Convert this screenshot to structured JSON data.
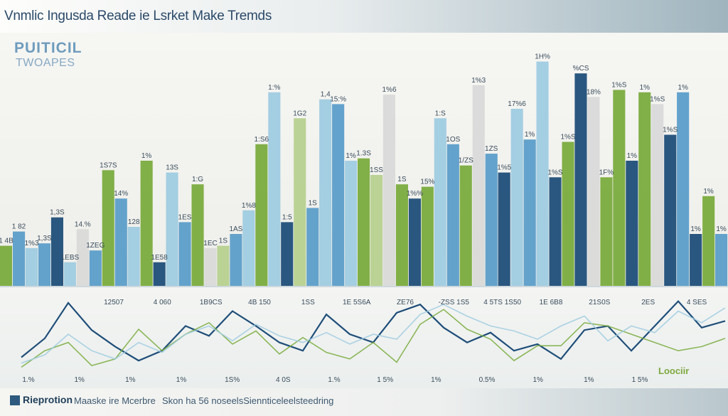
{
  "page": {
    "title": "Vnmlic Ingusda Reade ie Lsrket Make Tremds",
    "subtitle_line1": "PUITICIL",
    "subtitle_line2": "TWOAPES",
    "footer_left": "Rieprotion",
    "footer_mid": "Maaske ire Mcerbre",
    "footer_right": "Skon ha 56 noseelsSiennticeleelsteedring",
    "legend_badge": "Loociir"
  },
  "colors": {
    "navy": "#1f4e79",
    "blue": "#5b9dc9",
    "lightblue": "#9fcbe0",
    "green": "#7aab3e",
    "lightgreen": "#b6d08f",
    "gray": "#d9d9d9"
  },
  "chart_data": [
    {
      "type": "bar",
      "ylim": [
        0,
        100
      ],
      "grid": false,
      "bars": [
        {
          "value": 17,
          "color": "green"
        },
        {
          "value": 23,
          "color": "blue"
        },
        {
          "value": 16,
          "color": "lightblue"
        },
        {
          "value": 18,
          "color": "blue"
        },
        {
          "value": 29,
          "color": "navy"
        },
        {
          "value": 10,
          "color": "lightblue"
        },
        {
          "value": 24,
          "color": "gray"
        },
        {
          "value": 15,
          "color": "blue"
        },
        {
          "value": 49,
          "color": "green"
        },
        {
          "value": 37,
          "color": "blue"
        },
        {
          "value": 25,
          "color": "lightblue"
        },
        {
          "value": 53,
          "color": "green"
        },
        {
          "value": 10,
          "color": "navy"
        },
        {
          "value": 48,
          "color": "lightblue"
        },
        {
          "value": 27,
          "color": "blue"
        },
        {
          "value": 43,
          "color": "green"
        },
        {
          "value": 16,
          "color": "gray"
        },
        {
          "value": 17,
          "color": "lightgreen"
        },
        {
          "value": 22,
          "color": "blue"
        },
        {
          "value": 32,
          "color": "lightblue"
        },
        {
          "value": 60,
          "color": "green"
        },
        {
          "value": 82,
          "color": "lightblue"
        },
        {
          "value": 27,
          "color": "navy"
        },
        {
          "value": 71,
          "color": "lightgreen"
        },
        {
          "value": 33,
          "color": "blue"
        },
        {
          "value": 79,
          "color": "lightblue"
        },
        {
          "value": 77,
          "color": "blue"
        },
        {
          "value": 53,
          "color": "lightblue"
        },
        {
          "value": 54,
          "color": "green"
        },
        {
          "value": 47,
          "color": "lightgreen"
        },
        {
          "value": 81,
          "color": "gray"
        },
        {
          "value": 43,
          "color": "green"
        },
        {
          "value": 37,
          "color": "navy"
        },
        {
          "value": 42,
          "color": "green"
        },
        {
          "value": 71,
          "color": "lightblue"
        },
        {
          "value": 60,
          "color": "blue"
        },
        {
          "value": 51,
          "color": "green"
        },
        {
          "value": 85,
          "color": "gray"
        },
        {
          "value": 56,
          "color": "blue"
        },
        {
          "value": 48,
          "color": "navy"
        },
        {
          "value": 75,
          "color": "lightblue"
        },
        {
          "value": 62,
          "color": "blue"
        },
        {
          "value": 95,
          "color": "lightblue"
        },
        {
          "value": 46,
          "color": "navy"
        },
        {
          "value": 61,
          "color": "green"
        },
        {
          "value": 90,
          "color": "navy"
        },
        {
          "value": 80,
          "color": "gray"
        },
        {
          "value": 46,
          "color": "green"
        },
        {
          "value": 83,
          "color": "green"
        },
        {
          "value": 53,
          "color": "navy"
        },
        {
          "value": 82,
          "color": "green"
        },
        {
          "value": 77,
          "color": "gray"
        },
        {
          "value": 64,
          "color": "navy"
        },
        {
          "value": 82,
          "color": "blue"
        },
        {
          "value": 22,
          "color": "navy"
        },
        {
          "value": 38,
          "color": "green"
        },
        {
          "value": 22,
          "color": "blue"
        }
      ],
      "labels": [
        "1 4B",
        "1 82",
        "1%3",
        "1,3S",
        "1,3S",
        "1EBS",
        "14.%",
        "1ZEG",
        "1S7S",
        "14%",
        "128",
        "1%",
        "1E58",
        "13S",
        "1ES",
        "1:G",
        "1EC",
        "1S",
        "1AS",
        "1%8",
        "1:S6",
        "1:%",
        "1:5",
        "1G2",
        "1S",
        "1,4",
        "15:%",
        "1%",
        "1.3S",
        "1SS",
        "1%6",
        "1S",
        "1%%",
        "15%",
        "1:S",
        "1OS",
        "1/ZS",
        "1%3",
        "1ZS",
        "1%5",
        "17%6",
        "1%",
        "1H%",
        "1%S",
        "1%S",
        "%CS",
        "18%",
        "1F%",
        "1%S",
        "1%",
        "1%",
        "1%S",
        "1%S",
        "1%",
        "1%",
        "1%",
        "1%"
      ]
    },
    {
      "type": "line",
      "ylim": [
        0,
        100
      ],
      "series": [
        {
          "color": "navy",
          "values": [
            22,
            45,
            88,
            55,
            35,
            18,
            30,
            60,
            48,
            78,
            60,
            40,
            30,
            74,
            50,
            40,
            76,
            86,
            58,
            40,
            52,
            30,
            38,
            20,
            55,
            60,
            30,
            60,
            90,
            58,
            66
          ]
        },
        {
          "color": "green",
          "values": [
            10,
            30,
            40,
            12,
            20,
            56,
            30,
            50,
            64,
            38,
            54,
            26,
            46,
            28,
            20,
            40,
            16,
            62,
            80,
            56,
            44,
            18,
            36,
            36,
            64,
            60,
            50,
            40,
            30,
            35,
            45
          ]
        },
        {
          "color": "lightblue",
          "values": [
            15,
            25,
            50,
            30,
            20,
            40,
            28,
            50,
            60,
            42,
            62,
            48,
            40,
            52,
            38,
            50,
            44,
            74,
            86,
            72,
            60,
            54,
            44,
            60,
            72,
            42,
            60,
            52,
            78,
            64,
            82
          ]
        }
      ],
      "top_labels": [
        "12507",
        "4 060",
        "1B9CS",
        "4B 150",
        "1SS",
        "1E 5S6A",
        "ZE76",
        "-ZSS 1S5",
        "4 5TS 1S50",
        "1E 6B8",
        "21S0S",
        "2ES",
        "4 SES"
      ],
      "bottom_labels": [
        "1.%",
        "1%",
        "1%",
        "1%",
        "1S%",
        "4 0S",
        "1.%",
        "1 5%",
        "1%",
        "0.5%",
        "1%",
        "1%",
        "1 5%"
      ]
    }
  ]
}
